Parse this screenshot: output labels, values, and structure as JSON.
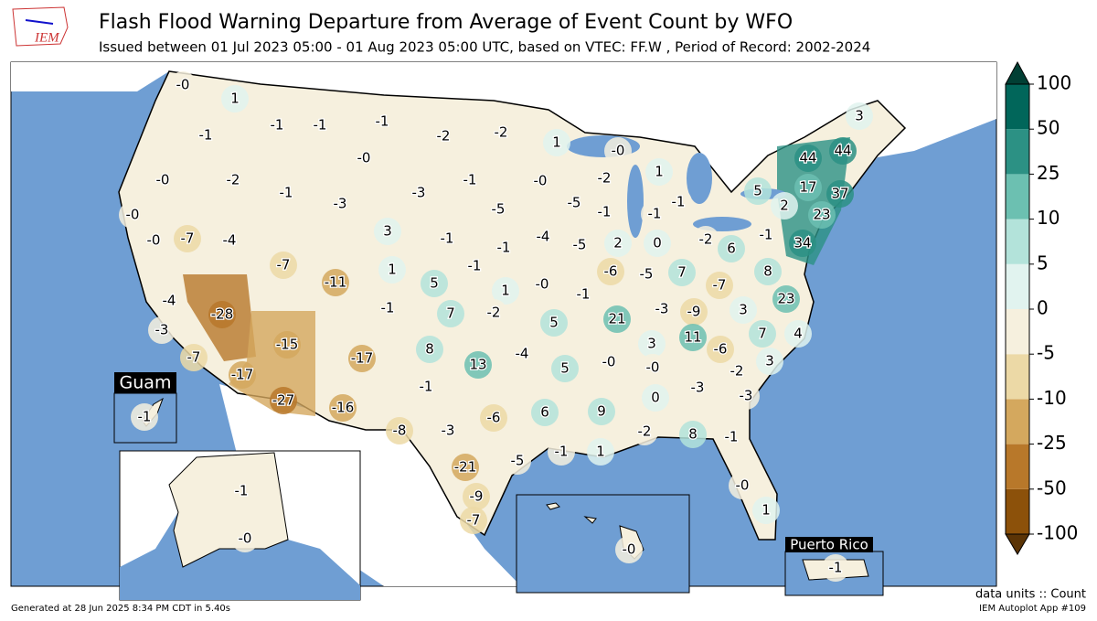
{
  "logo": "IEM",
  "title": "Flash Flood Warning Departure from Average of Event Count by WFO",
  "subtitle": "Issued between 01 Jul 2023 05:00 - 01 Aug 2023 05:00 UTC, based on VTEC: FF.W  , Period of Record: 2002-2024",
  "insets": {
    "guam": "Guam",
    "puerto_rico": "Puerto Rico"
  },
  "wfo": {
    "values": [
      0,
      1,
      -1,
      -1,
      -1,
      -1,
      -2,
      -2,
      1,
      0,
      3,
      44,
      44,
      0,
      -2,
      -1,
      0,
      -3,
      -3,
      -1,
      0,
      -2,
      1,
      -5,
      -5,
      -1,
      -1,
      -1,
      5,
      2,
      17,
      37,
      23,
      0,
      0,
      -7,
      -4,
      -7,
      3,
      -1,
      -1,
      -4,
      -5,
      2,
      0,
      -2,
      6,
      -1,
      34,
      -11,
      1,
      -1,
      -6,
      -5,
      7,
      -7,
      8,
      -4,
      5,
      1,
      0,
      -1,
      23,
      -28,
      -1,
      7,
      -2,
      5,
      21,
      -3,
      -9,
      3,
      -3,
      -15,
      -17,
      8,
      -4,
      5,
      3,
      11,
      -6,
      7,
      4,
      -7,
      -17,
      13,
      0,
      0,
      -2,
      3,
      -1,
      -3,
      -3,
      -27,
      -16,
      0,
      9,
      6,
      -6,
      -8,
      -3,
      -2,
      8,
      -1,
      -1,
      1,
      -5,
      -21,
      -9,
      0,
      1,
      -7,
      -1,
      -1,
      0,
      0,
      -1
    ],
    "value_labels": [
      "-0",
      "1",
      "-1",
      "-1",
      "-1",
      "-1",
      "-2",
      "-2",
      "1",
      "-0",
      "3",
      "44",
      "44",
      "-0",
      "-2",
      "-1",
      "-0",
      "-3",
      "-3",
      "-1",
      "-0",
      "-2",
      "1",
      "-5",
      "-5",
      "-1",
      "-1",
      "-1",
      "5",
      "2",
      "17",
      "37",
      "23",
      "-0",
      "-0",
      "-7",
      "-4",
      "-7",
      "3",
      "-1",
      "-1",
      "-4",
      "-5",
      "2",
      "0",
      "-2",
      "6",
      "-1",
      "34",
      "-11",
      "1",
      "-1",
      "-6",
      "-5",
      "7",
      "-7",
      "8",
      "-4",
      "5",
      "1",
      "-0",
      "-1",
      "23",
      "-28",
      "-1",
      "7",
      "-2",
      "5",
      "21",
      "-3",
      "-9",
      "3",
      "-3",
      "-15",
      "-17",
      "8",
      "-4",
      "5",
      "3",
      "11",
      "-6",
      "7",
      "4",
      "-7",
      "-17",
      "13",
      "-0",
      "-0",
      "-2",
      "3",
      "-1",
      "-3",
      "-3",
      "-27",
      "-16",
      "0",
      "9",
      "6",
      "-6",
      "-8",
      "-3",
      "-2",
      "8",
      "-1",
      "-1",
      "1",
      "-5",
      "-21",
      "-9",
      "-0",
      "1",
      "-7",
      "-1",
      "-1",
      "-0",
      "-0",
      "-1"
    ]
  },
  "colorbar": {
    "ticks": [
      -100,
      -50,
      -25,
      -10,
      -5,
      0,
      5,
      10,
      25,
      50,
      100
    ],
    "colors": [
      "#8c510a",
      "#b8782a",
      "#d4a85e",
      "#ecd9a6",
      "#f6f0de",
      "#e1f3ef",
      "#b3e3da",
      "#6cc0b1",
      "#2c9184",
      "#01665a"
    ],
    "extend_colors": [
      "#5b3406",
      "#013f34"
    ]
  },
  "units": "data units :: Count",
  "generated": "Generated at 28 Jun 2025 8:34 PM CDT in 5.40s",
  "app": "IEM Autoplot App #109"
}
